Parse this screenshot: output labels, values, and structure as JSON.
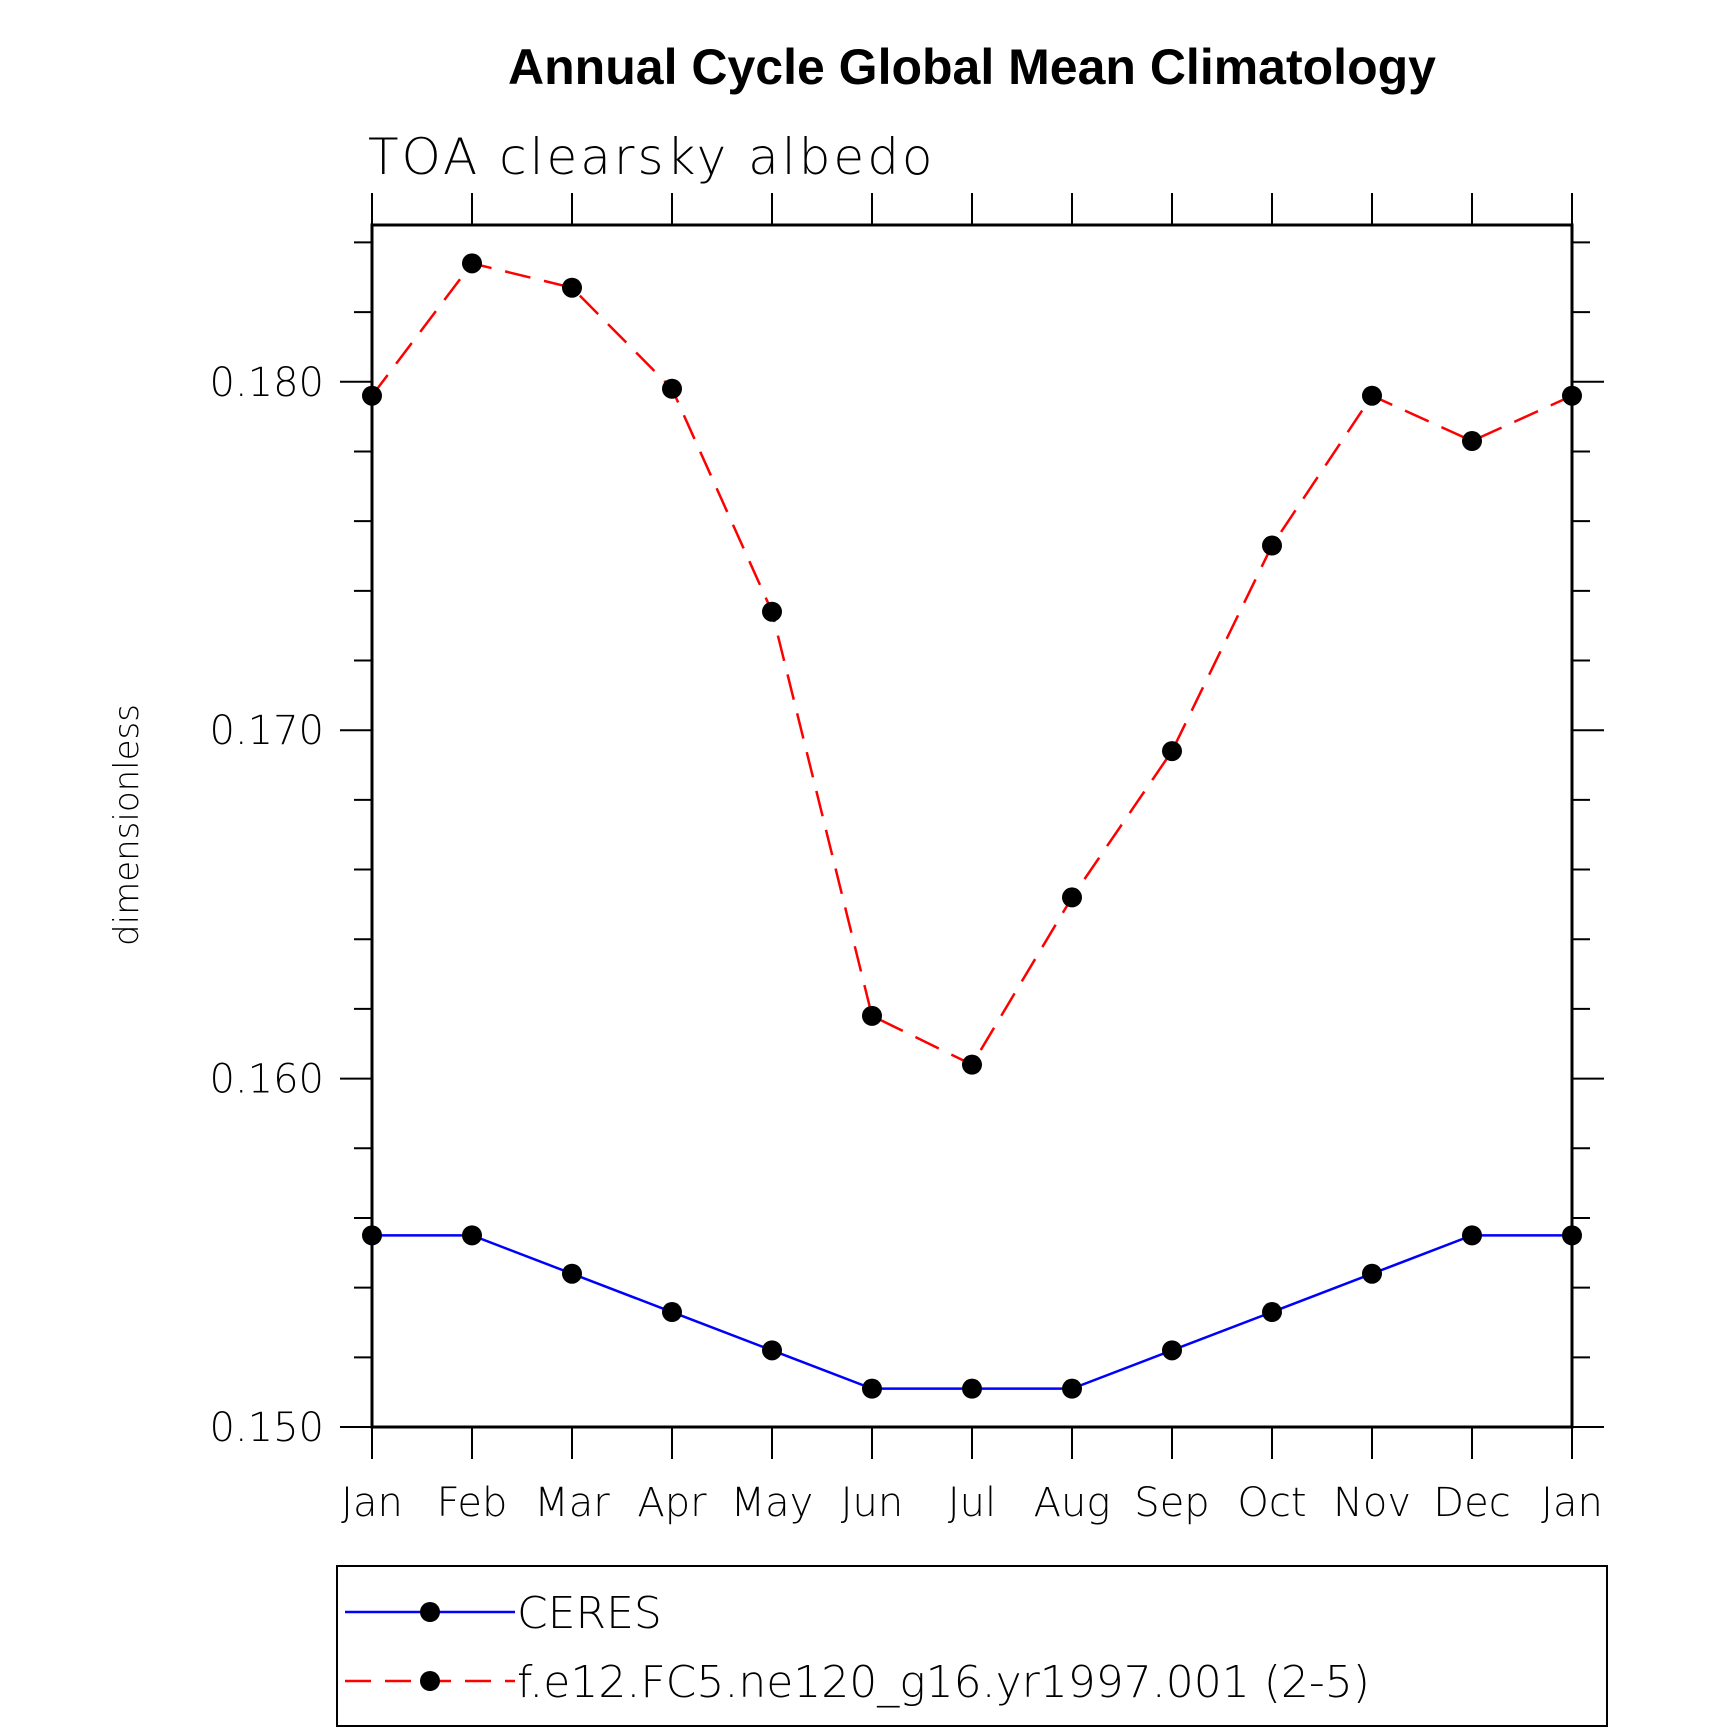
{
  "chart_data": {
    "type": "line",
    "title": "Annual Cycle Global Mean Climatology",
    "subtitle": "TOA clearsky albedo",
    "xlabel": "",
    "ylabel": "dimensionless",
    "categories": [
      "Jan",
      "Feb",
      "Mar",
      "Apr",
      "May",
      "Jun",
      "Jul",
      "Aug",
      "Sep",
      "Oct",
      "Nov",
      "Dec",
      "Jan"
    ],
    "ylim": [
      0.15,
      0.1845
    ],
    "yticks": [
      0.15,
      0.16,
      0.17,
      0.18
    ],
    "ytick_labels": [
      "0.150",
      "0.160",
      "0.170",
      "0.180"
    ],
    "grid": false,
    "legend_position": "bottom",
    "series": [
      {
        "name": "CERES",
        "color": "#0000ff",
        "line_style": "solid",
        "marker": "dot",
        "values": [
          0.1555,
          0.1555,
          0.1544,
          0.1533,
          0.1522,
          0.1511,
          0.1511,
          0.1511,
          0.1522,
          0.1533,
          0.1544,
          0.1555,
          0.1555
        ]
      },
      {
        "name": "f.e12.FC5.ne120_g16.yr1997.001 (2-5)",
        "color": "#ff0000",
        "line_style": "dashed",
        "marker": "dot",
        "values": [
          0.1796,
          0.1834,
          0.1827,
          0.1798,
          0.1734,
          0.1618,
          0.1604,
          0.1652,
          0.1694,
          0.1753,
          0.1796,
          0.1783,
          0.1796
        ]
      }
    ]
  }
}
